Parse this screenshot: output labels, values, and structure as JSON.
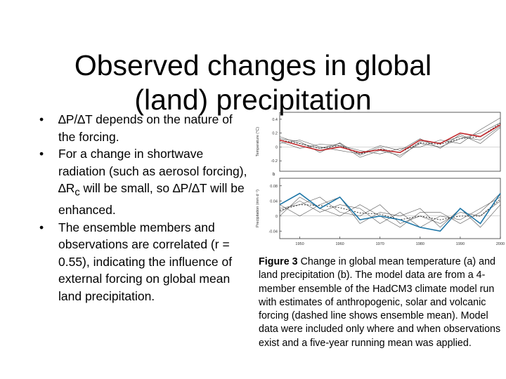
{
  "slide": {
    "title_line1": "Observed changes in global",
    "title_line2": "(land) precipitation"
  },
  "bullets": [
    {
      "marker": "•",
      "text": "∆P/∆T depends on the nature of the forcing."
    },
    {
      "marker": "•",
      "pre": "For a change in shortwave radiation (such as aerosol forcing), ∆R",
      "sub": "c",
      "post": " will be small, so ∆P/∆T will be enhanced."
    },
    {
      "marker": "•",
      "text": "The ensemble members and observations are correlated (r = 0.55), indicating the influence of external forcing on global mean land precipitation."
    }
  ],
  "caption": {
    "label": "Figure 3",
    "text": " Change in global mean temperature (a) and land precipitation (b). The model data are from a 4-member ensemble of the HadCM3 climate model run with estimates of anthropogenic, solar and volcanic forcing (dashed line shows ensemble mean). Model data were included only where and when observations exist and a five-year running mean was applied."
  },
  "colors": {
    "observed_temperature": "#c0282c",
    "observed_precipitation": "#1f77a8",
    "model": "#555555"
  },
  "chart_data": [
    {
      "panel": "a",
      "type": "line",
      "ylabel": "Temperature (°C)",
      "yticks": [
        -0.2,
        0,
        0.2,
        0.4
      ],
      "ylim": [
        -0.35,
        0.5
      ],
      "xlim": [
        1945,
        2000
      ],
      "x": [
        1945,
        1950,
        1955,
        1960,
        1965,
        1970,
        1975,
        1980,
        1985,
        1990,
        1995,
        2000
      ],
      "series": [
        {
          "role": "observed",
          "color": "#c0282c",
          "values": [
            0.1,
            0.02,
            -0.05,
            0.0,
            -0.08,
            -0.04,
            -0.08,
            0.1,
            0.05,
            0.2,
            0.15,
            0.32
          ]
        },
        {
          "role": "model",
          "style": "solid",
          "values": [
            0.15,
            0.05,
            -0.02,
            0.05,
            -0.15,
            -0.05,
            -0.12,
            0.05,
            0.0,
            0.12,
            0.2,
            0.35
          ]
        },
        {
          "role": "model",
          "style": "solid",
          "values": [
            0.05,
            0.1,
            0.0,
            -0.05,
            -0.1,
            0.02,
            -0.05,
            0.12,
            -0.02,
            0.18,
            0.05,
            0.28
          ]
        },
        {
          "role": "model",
          "style": "solid",
          "values": [
            0.08,
            -0.02,
            0.04,
            0.02,
            -0.05,
            -0.1,
            -0.02,
            0.0,
            0.1,
            0.05,
            0.25,
            0.42
          ]
        },
        {
          "role": "model",
          "style": "solid",
          "values": [
            0.12,
            0.08,
            -0.08,
            0.06,
            -0.12,
            0.0,
            -0.15,
            0.08,
            0.06,
            0.15,
            0.1,
            0.3
          ]
        },
        {
          "role": "ensemble_mean",
          "style": "dashed",
          "values": [
            0.1,
            0.05,
            -0.02,
            0.02,
            -0.1,
            -0.03,
            -0.08,
            0.06,
            0.04,
            0.12,
            0.15,
            0.34
          ]
        }
      ]
    },
    {
      "panel": "b",
      "type": "line",
      "ylabel": "Precipitation (mm d⁻¹)",
      "yticks": [
        -0.04,
        0,
        0.04,
        0.08
      ],
      "ylim": [
        -0.06,
        0.1
      ],
      "xlim": [
        1945,
        2000
      ],
      "xticks": [
        1950,
        1960,
        1970,
        1980,
        1990,
        2000
      ],
      "x": [
        1945,
        1950,
        1955,
        1960,
        1965,
        1970,
        1975,
        1980,
        1985,
        1990,
        1995,
        2000
      ],
      "series": [
        {
          "role": "observed",
          "color": "#1f77a8",
          "values": [
            0.03,
            0.06,
            0.02,
            0.05,
            -0.01,
            0.0,
            -0.01,
            -0.03,
            -0.04,
            0.02,
            -0.02,
            0.06
          ]
        },
        {
          "role": "model",
          "style": "solid",
          "values": [
            0.02,
            0.03,
            0.05,
            0.01,
            0.0,
            0.03,
            -0.02,
            0.0,
            -0.02,
            0.01,
            0.0,
            0.04
          ]
        },
        {
          "role": "model",
          "style": "solid",
          "values": [
            0.01,
            0.04,
            0.01,
            0.03,
            0.02,
            -0.02,
            0.01,
            -0.03,
            0.0,
            -0.01,
            0.02,
            0.05
          ]
        },
        {
          "role": "model",
          "style": "solid",
          "values": [
            0.03,
            0.0,
            0.03,
            0.05,
            -0.02,
            0.01,
            0.0,
            0.02,
            -0.03,
            0.02,
            -0.03,
            0.03
          ]
        },
        {
          "role": "model",
          "style": "solid",
          "values": [
            0.0,
            0.05,
            0.02,
            0.0,
            0.03,
            0.0,
            -0.03,
            0.01,
            0.01,
            -0.02,
            0.01,
            0.06
          ]
        },
        {
          "role": "ensemble_mean",
          "style": "dashed",
          "values": [
            0.015,
            0.03,
            0.028,
            0.022,
            0.008,
            0.005,
            -0.01,
            0.0,
            -0.01,
            0.0,
            0.0,
            0.045
          ]
        }
      ]
    }
  ]
}
